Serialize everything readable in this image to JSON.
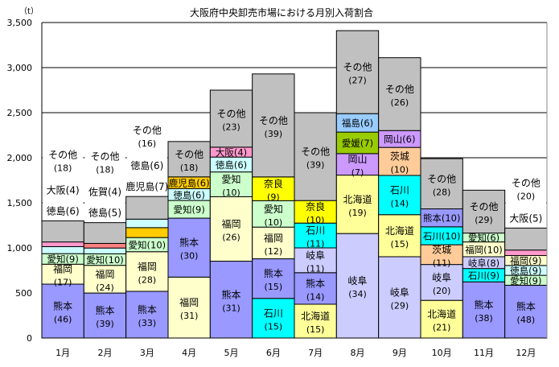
{
  "chart_data": {
    "type": "bar",
    "stacked": true,
    "title": "大阪府中央卸売市場における月別入荷割合",
    "ylabel": "（t）",
    "ylim": [
      0,
      3500
    ],
    "yticks": [
      0,
      500,
      1000,
      1500,
      2000,
      2500,
      3000,
      3500
    ],
    "ytick_labels": [
      "0",
      "500",
      "1,000",
      "1,500",
      "2,000",
      "2,500",
      "3,000",
      "3,500"
    ],
    "grid": true,
    "categories": [
      "1月",
      "2月",
      "3月",
      "4月",
      "5月",
      "6月",
      "7月",
      "8月",
      "9月",
      "10月",
      "11月",
      "12月"
    ],
    "colors": {
      "熊本": "#9999ff",
      "福岡": "#ffffcc",
      "愛知": "#ccffcc",
      "徳島": "#ccffff",
      "大阪": "#ff99cc",
      "佐賀": "#ff8080",
      "鹿児島": "#ffcc00",
      "その他": "#c0c0c0",
      "石川": "#00ffff",
      "奈良": "#ffff00",
      "岐阜": "#ccccff",
      "北海道": "#ffff99",
      "岡山": "#cc99ff",
      "愛媛": "#99cc00",
      "福島": "#99ccff",
      "茨城": "#ffcc99"
    },
    "months": [
      {
        "total": 1300,
        "segments": [
          [
            "熊本",
            46,
            "two"
          ],
          [
            "福岡",
            17,
            "two"
          ],
          [
            "愛知",
            9,
            "one"
          ],
          [
            "徳島",
            6,
            "out"
          ],
          [
            "大阪",
            4,
            "out"
          ],
          [
            "その他",
            18,
            "out"
          ]
        ]
      },
      {
        "total": 1280,
        "segments": [
          [
            "熊本",
            39,
            "two"
          ],
          [
            "福岡",
            24,
            "two"
          ],
          [
            "愛知",
            10,
            "one"
          ],
          [
            "徳島",
            5,
            "out"
          ],
          [
            "佐賀",
            4,
            "out"
          ],
          [
            "その他",
            18,
            "out"
          ]
        ]
      },
      {
        "total": 1570,
        "segments": [
          [
            "熊本",
            33,
            "two"
          ],
          [
            "福岡",
            28,
            "two"
          ],
          [
            "愛知",
            10,
            "one"
          ],
          [
            "鹿児島",
            7,
            "out"
          ],
          [
            "徳島",
            6,
            "out"
          ],
          [
            "その他",
            16,
            "out"
          ]
        ]
      },
      {
        "total": 2180,
        "segments": [
          [
            "福岡",
            31,
            "two"
          ],
          [
            "熊本",
            30,
            "two"
          ],
          [
            "愛知",
            9,
            "one"
          ],
          [
            "徳島",
            6,
            "one"
          ],
          [
            "鹿児島",
            6,
            "one"
          ],
          [
            "その他",
            18,
            "two"
          ]
        ]
      },
      {
        "total": 2750,
        "segments": [
          [
            "熊本",
            31,
            "two"
          ],
          [
            "福岡",
            26,
            "two"
          ],
          [
            "愛知",
            10,
            "two"
          ],
          [
            "徳島",
            6,
            "one"
          ],
          [
            "大阪",
            4,
            "one"
          ],
          [
            "その他",
            23,
            "two"
          ]
        ]
      },
      {
        "total": 2930,
        "segments": [
          [
            "石川",
            15,
            "two"
          ],
          [
            "熊本",
            15,
            "two"
          ],
          [
            "福岡",
            12,
            "two"
          ],
          [
            "愛知",
            10,
            "two"
          ],
          [
            "奈良",
            9,
            "two"
          ],
          [
            "その他",
            39,
            "two"
          ]
        ]
      },
      {
        "total": 2500,
        "segments": [
          [
            "北海道",
            15,
            "two"
          ],
          [
            "熊本",
            14,
            "two"
          ],
          [
            "岐阜",
            11,
            "two"
          ],
          [
            "石川",
            11,
            "two"
          ],
          [
            "奈良",
            10,
            "two"
          ],
          [
            "その他",
            39,
            "two"
          ]
        ]
      },
      {
        "total": 3410,
        "segments": [
          [
            "岐阜",
            34,
            "two"
          ],
          [
            "北海道",
            19,
            "two"
          ],
          [
            "岡山",
            7,
            "two"
          ],
          [
            "愛媛",
            7,
            "one"
          ],
          [
            "福島",
            6,
            "one"
          ],
          [
            "その他",
            27,
            "two"
          ]
        ]
      },
      {
        "total": 3110,
        "segments": [
          [
            "岐阜",
            29,
            "two"
          ],
          [
            "北海道",
            15,
            "two"
          ],
          [
            "石川",
            14,
            "two"
          ],
          [
            "茨城",
            10,
            "two"
          ],
          [
            "岡山",
            6,
            "one"
          ],
          [
            "その他",
            26,
            "two"
          ]
        ]
      },
      {
        "total": 1990,
        "segments": [
          [
            "北海道",
            21,
            "two"
          ],
          [
            "岐阜",
            20,
            "two"
          ],
          [
            "茨城",
            11,
            "two"
          ],
          [
            "石川",
            10,
            "one"
          ],
          [
            "熊本",
            10,
            "one"
          ],
          [
            "その他",
            28,
            "two"
          ]
        ]
      },
      {
        "total": 1640,
        "segments": [
          [
            "熊本",
            38,
            "two"
          ],
          [
            "石川",
            9,
            "one"
          ],
          [
            "岐阜",
            8,
            "one"
          ],
          [
            "福岡",
            10,
            "one"
          ],
          [
            "愛知",
            6,
            "one"
          ],
          [
            "その他",
            29,
            "two"
          ]
        ]
      },
      {
        "total": 1220,
        "segments": [
          [
            "熊本",
            48,
            "two"
          ],
          [
            "愛知",
            9,
            "one"
          ],
          [
            "徳島",
            9,
            "one"
          ],
          [
            "福岡",
            9,
            "one"
          ],
          [
            "大阪",
            5,
            "out"
          ],
          [
            "その他",
            20,
            "out"
          ]
        ]
      }
    ]
  }
}
